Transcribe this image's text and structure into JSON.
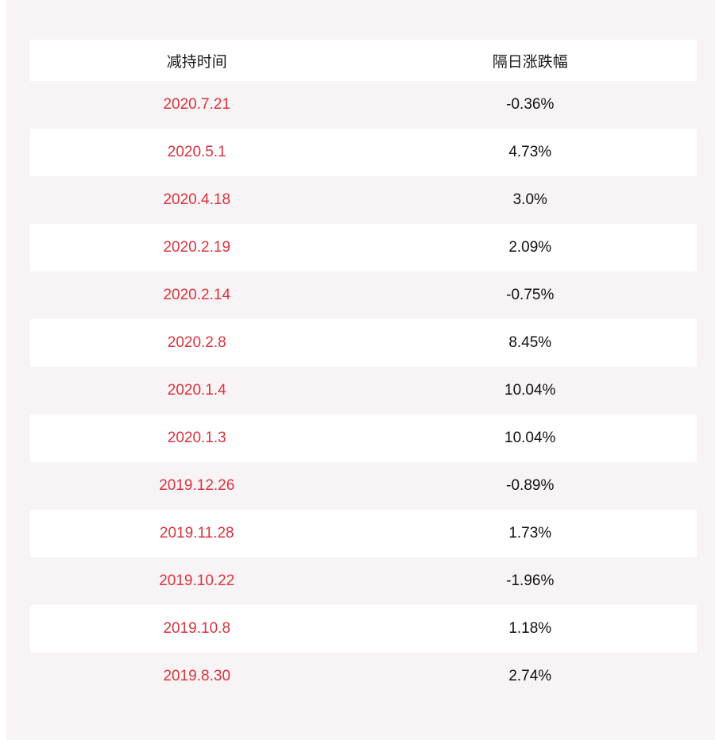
{
  "table": {
    "headers": [
      "减持时间",
      "隔日涨跌幅"
    ],
    "rows": [
      {
        "date": "2020.7.21",
        "change": "-0.36%"
      },
      {
        "date": "2020.5.1",
        "change": "4.73%"
      },
      {
        "date": "2020.4.18",
        "change": "3.0%"
      },
      {
        "date": "2020.2.19",
        "change": "2.09%"
      },
      {
        "date": "2020.2.14",
        "change": "-0.75%"
      },
      {
        "date": "2020.2.8",
        "change": "8.45%"
      },
      {
        "date": "2020.1.4",
        "change": "10.04%"
      },
      {
        "date": "2020.1.3",
        "change": "10.04%"
      },
      {
        "date": "2019.12.26",
        "change": "-0.89%"
      },
      {
        "date": "2019.11.28",
        "change": "1.73%"
      },
      {
        "date": "2019.10.22",
        "change": "-1.96%"
      },
      {
        "date": "2019.10.8",
        "change": "1.18%"
      },
      {
        "date": "2019.8.30",
        "change": "2.74%"
      }
    ]
  },
  "colors": {
    "date_text": "#d9343d",
    "value_text": "#111111",
    "background": "#f8f4f5",
    "alt_row": "#ffffff"
  }
}
